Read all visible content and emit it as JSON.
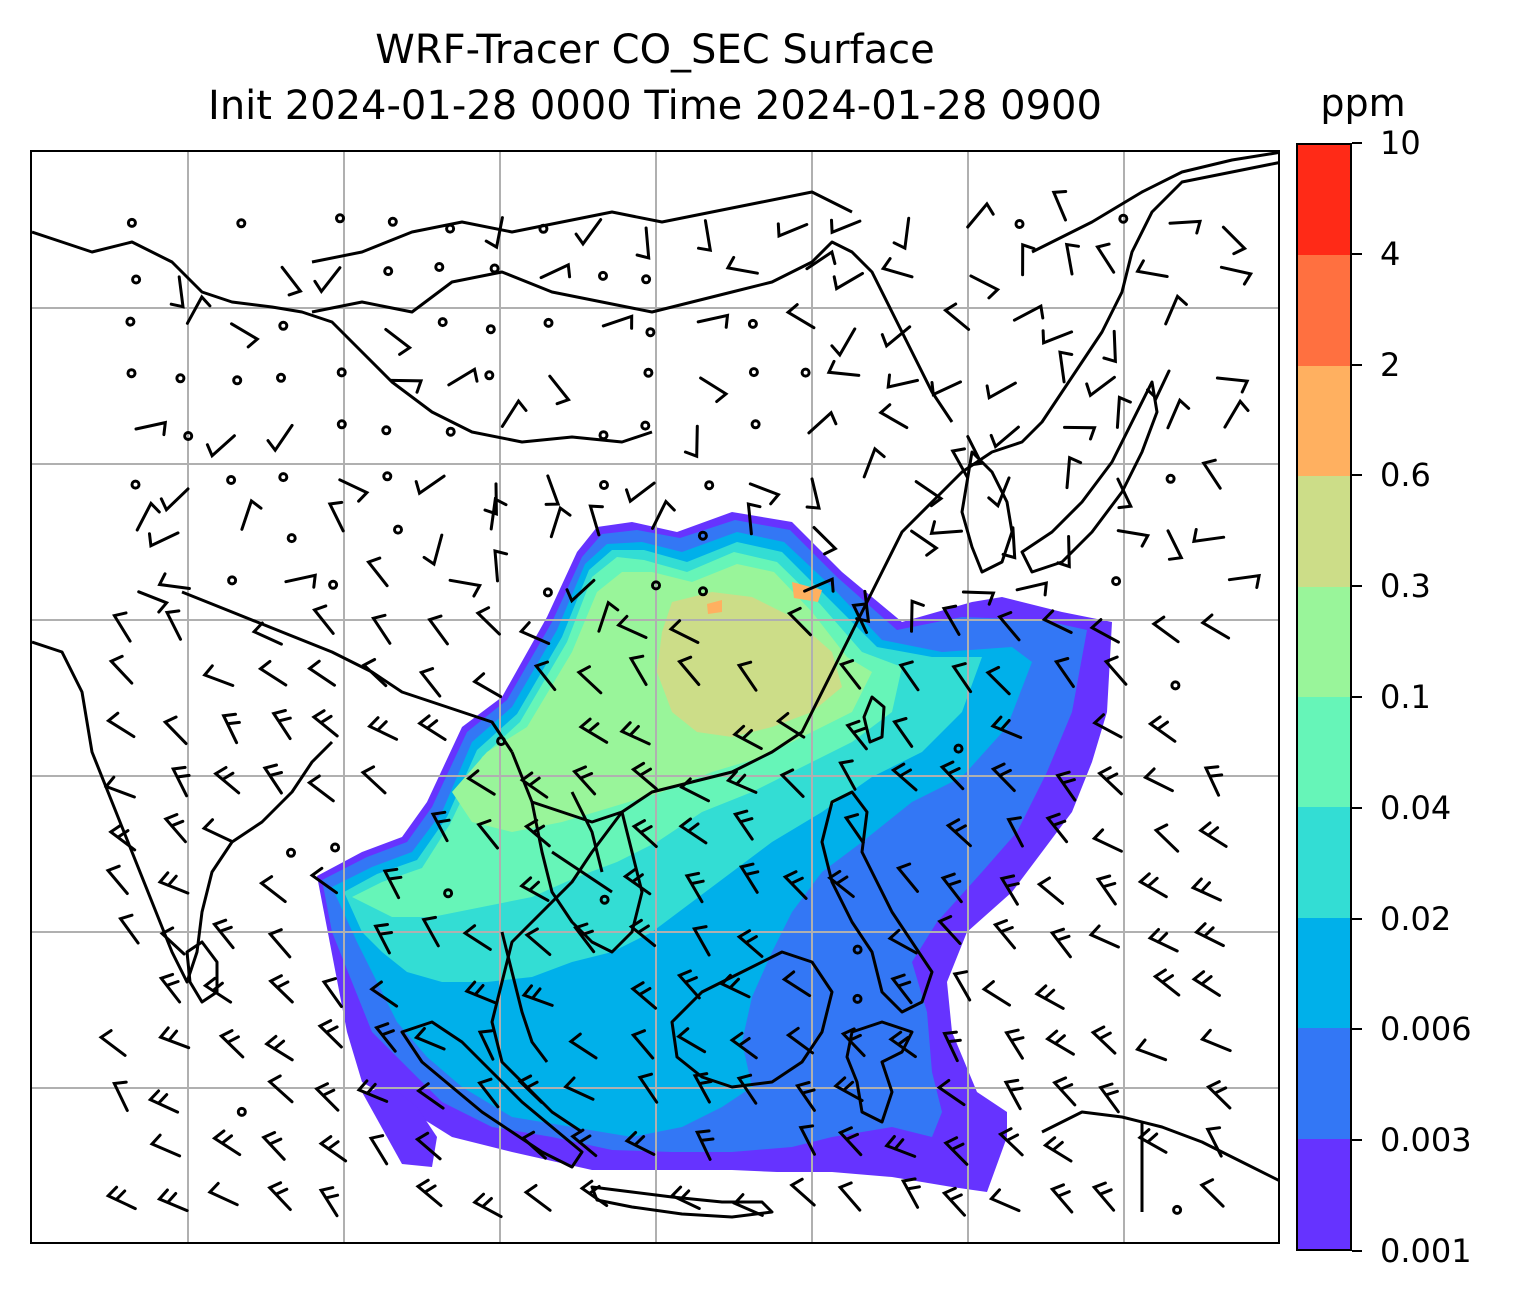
{
  "title": {
    "line1": "WRF-Tracer CO_SEC Surface",
    "line2": "Init 2024-01-28 0000 Time 2024-01-28 0900"
  },
  "map": {
    "projection": "lat-lon",
    "gridlines": true,
    "layers": [
      "coastlines",
      "country borders",
      "filled contours CO_SEC",
      "wind barbs"
    ],
    "wind_barbs_color": "#000000"
  },
  "colorbar": {
    "unit": "ppm",
    "levels": [
      "0.001",
      "0.003",
      "0.006",
      "0.02",
      "0.04",
      "0.1",
      "0.3",
      "0.6",
      "2",
      "4",
      "10"
    ],
    "colors": [
      "#6633ff",
      "#3377f5",
      "#00b0ea",
      "#33ddd4",
      "#66f5b8",
      "#99f59a",
      "#ccdd88",
      "#ffb060",
      "#ff7040",
      "#ff2a17"
    ]
  }
}
